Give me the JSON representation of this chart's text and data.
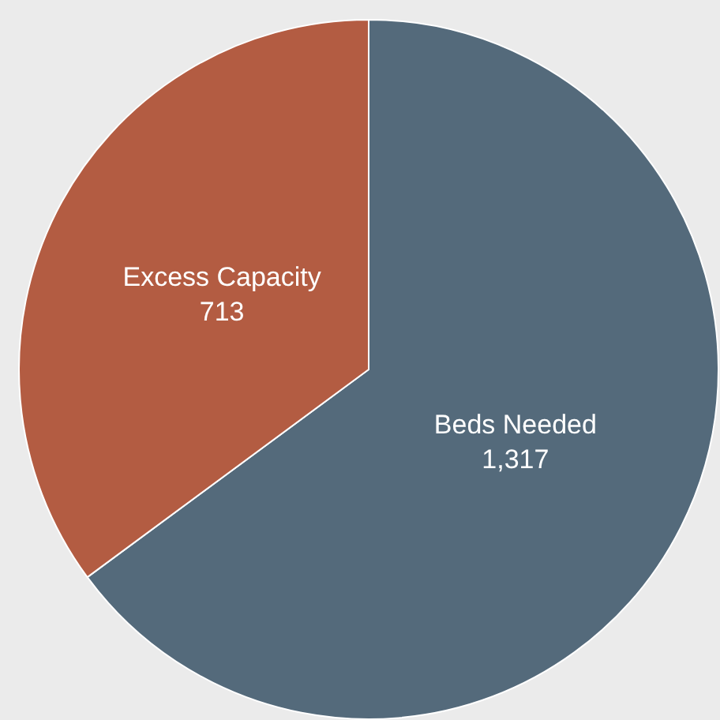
{
  "chart_data": {
    "type": "pie",
    "categories": [
      "Beds Needed",
      "Excess Capacity"
    ],
    "values": [
      1317,
      713
    ],
    "colors": [
      "#546a7b",
      "#b35c42"
    ],
    "value_labels": [
      "1,317",
      "713"
    ]
  }
}
